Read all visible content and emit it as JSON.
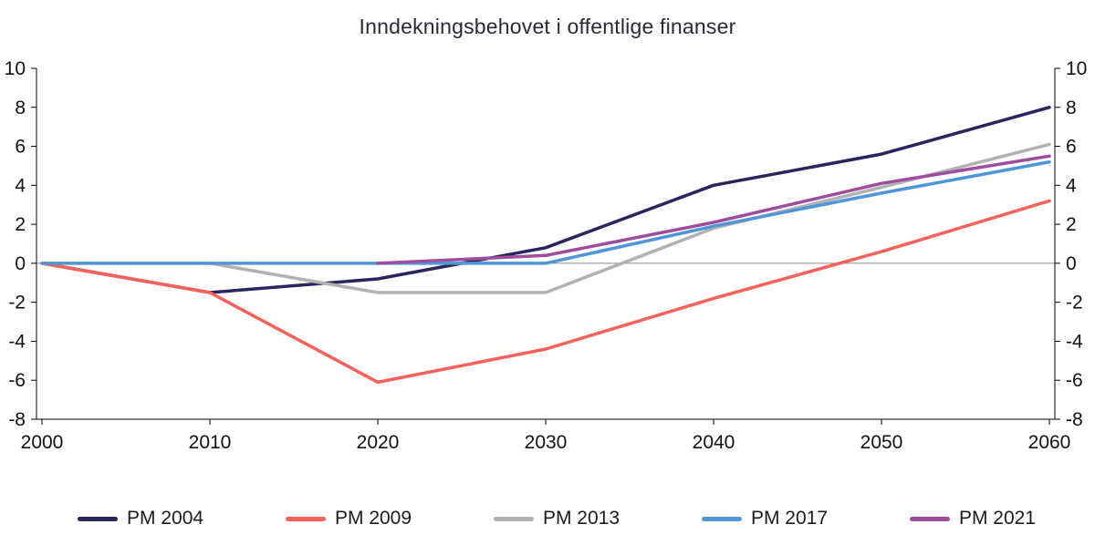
{
  "chart_data": {
    "type": "line",
    "title": "Inndekningsbehovet i offentlige finanser",
    "xlabel": "",
    "ylabel": "",
    "xlim": [
      2000,
      2060
    ],
    "ylim": [
      -8,
      10
    ],
    "x_ticks": [
      2000,
      2010,
      2020,
      2030,
      2040,
      2050,
      2060
    ],
    "y_ticks": [
      10,
      8,
      6,
      4,
      2,
      0,
      -2,
      -4,
      -6,
      -8
    ],
    "y_axis_sides": [
      "left",
      "right"
    ],
    "zero_line": true,
    "grid": false,
    "legend_position": "bottom",
    "colors": {
      "axis": "#000000",
      "zero_line": "#8c8c8c",
      "tick_text": "#121212"
    },
    "series": [
      {
        "name": "PM 2004",
        "color": "#29265e",
        "points": [
          [
            2000,
            0
          ],
          [
            2010,
            -1.5
          ],
          [
            2020,
            -0.8
          ],
          [
            2030,
            0.8
          ],
          [
            2040,
            4.0
          ],
          [
            2050,
            5.6
          ],
          [
            2060,
            8.0
          ]
        ]
      },
      {
        "name": "PM 2009",
        "color": "#f8615a",
        "points": [
          [
            2000,
            0
          ],
          [
            2010,
            -1.5
          ],
          [
            2020,
            -6.1
          ],
          [
            2030,
            -4.4
          ],
          [
            2040,
            -1.8
          ],
          [
            2050,
            0.6
          ],
          [
            2060,
            3.2
          ]
        ]
      },
      {
        "name": "PM 2013",
        "color": "#b3b2b2",
        "points": [
          [
            2000,
            0
          ],
          [
            2010,
            0
          ],
          [
            2020,
            -1.5
          ],
          [
            2030,
            -1.5
          ],
          [
            2040,
            1.8
          ],
          [
            2050,
            3.9
          ],
          [
            2060,
            6.1
          ]
        ]
      },
      {
        "name": "PM 2017",
        "color": "#4e95d9",
        "points": [
          [
            2000,
            0
          ],
          [
            2010,
            0
          ],
          [
            2020,
            0
          ],
          [
            2030,
            0
          ],
          [
            2040,
            1.9
          ],
          [
            2050,
            3.6
          ],
          [
            2060,
            5.2
          ]
        ]
      },
      {
        "name": "PM 2021",
        "color": "#9e4d9e",
        "points": [
          [
            2020,
            0
          ],
          [
            2030,
            0.4
          ],
          [
            2040,
            2.1
          ],
          [
            2050,
            4.1
          ],
          [
            2060,
            5.5
          ]
        ]
      }
    ]
  }
}
